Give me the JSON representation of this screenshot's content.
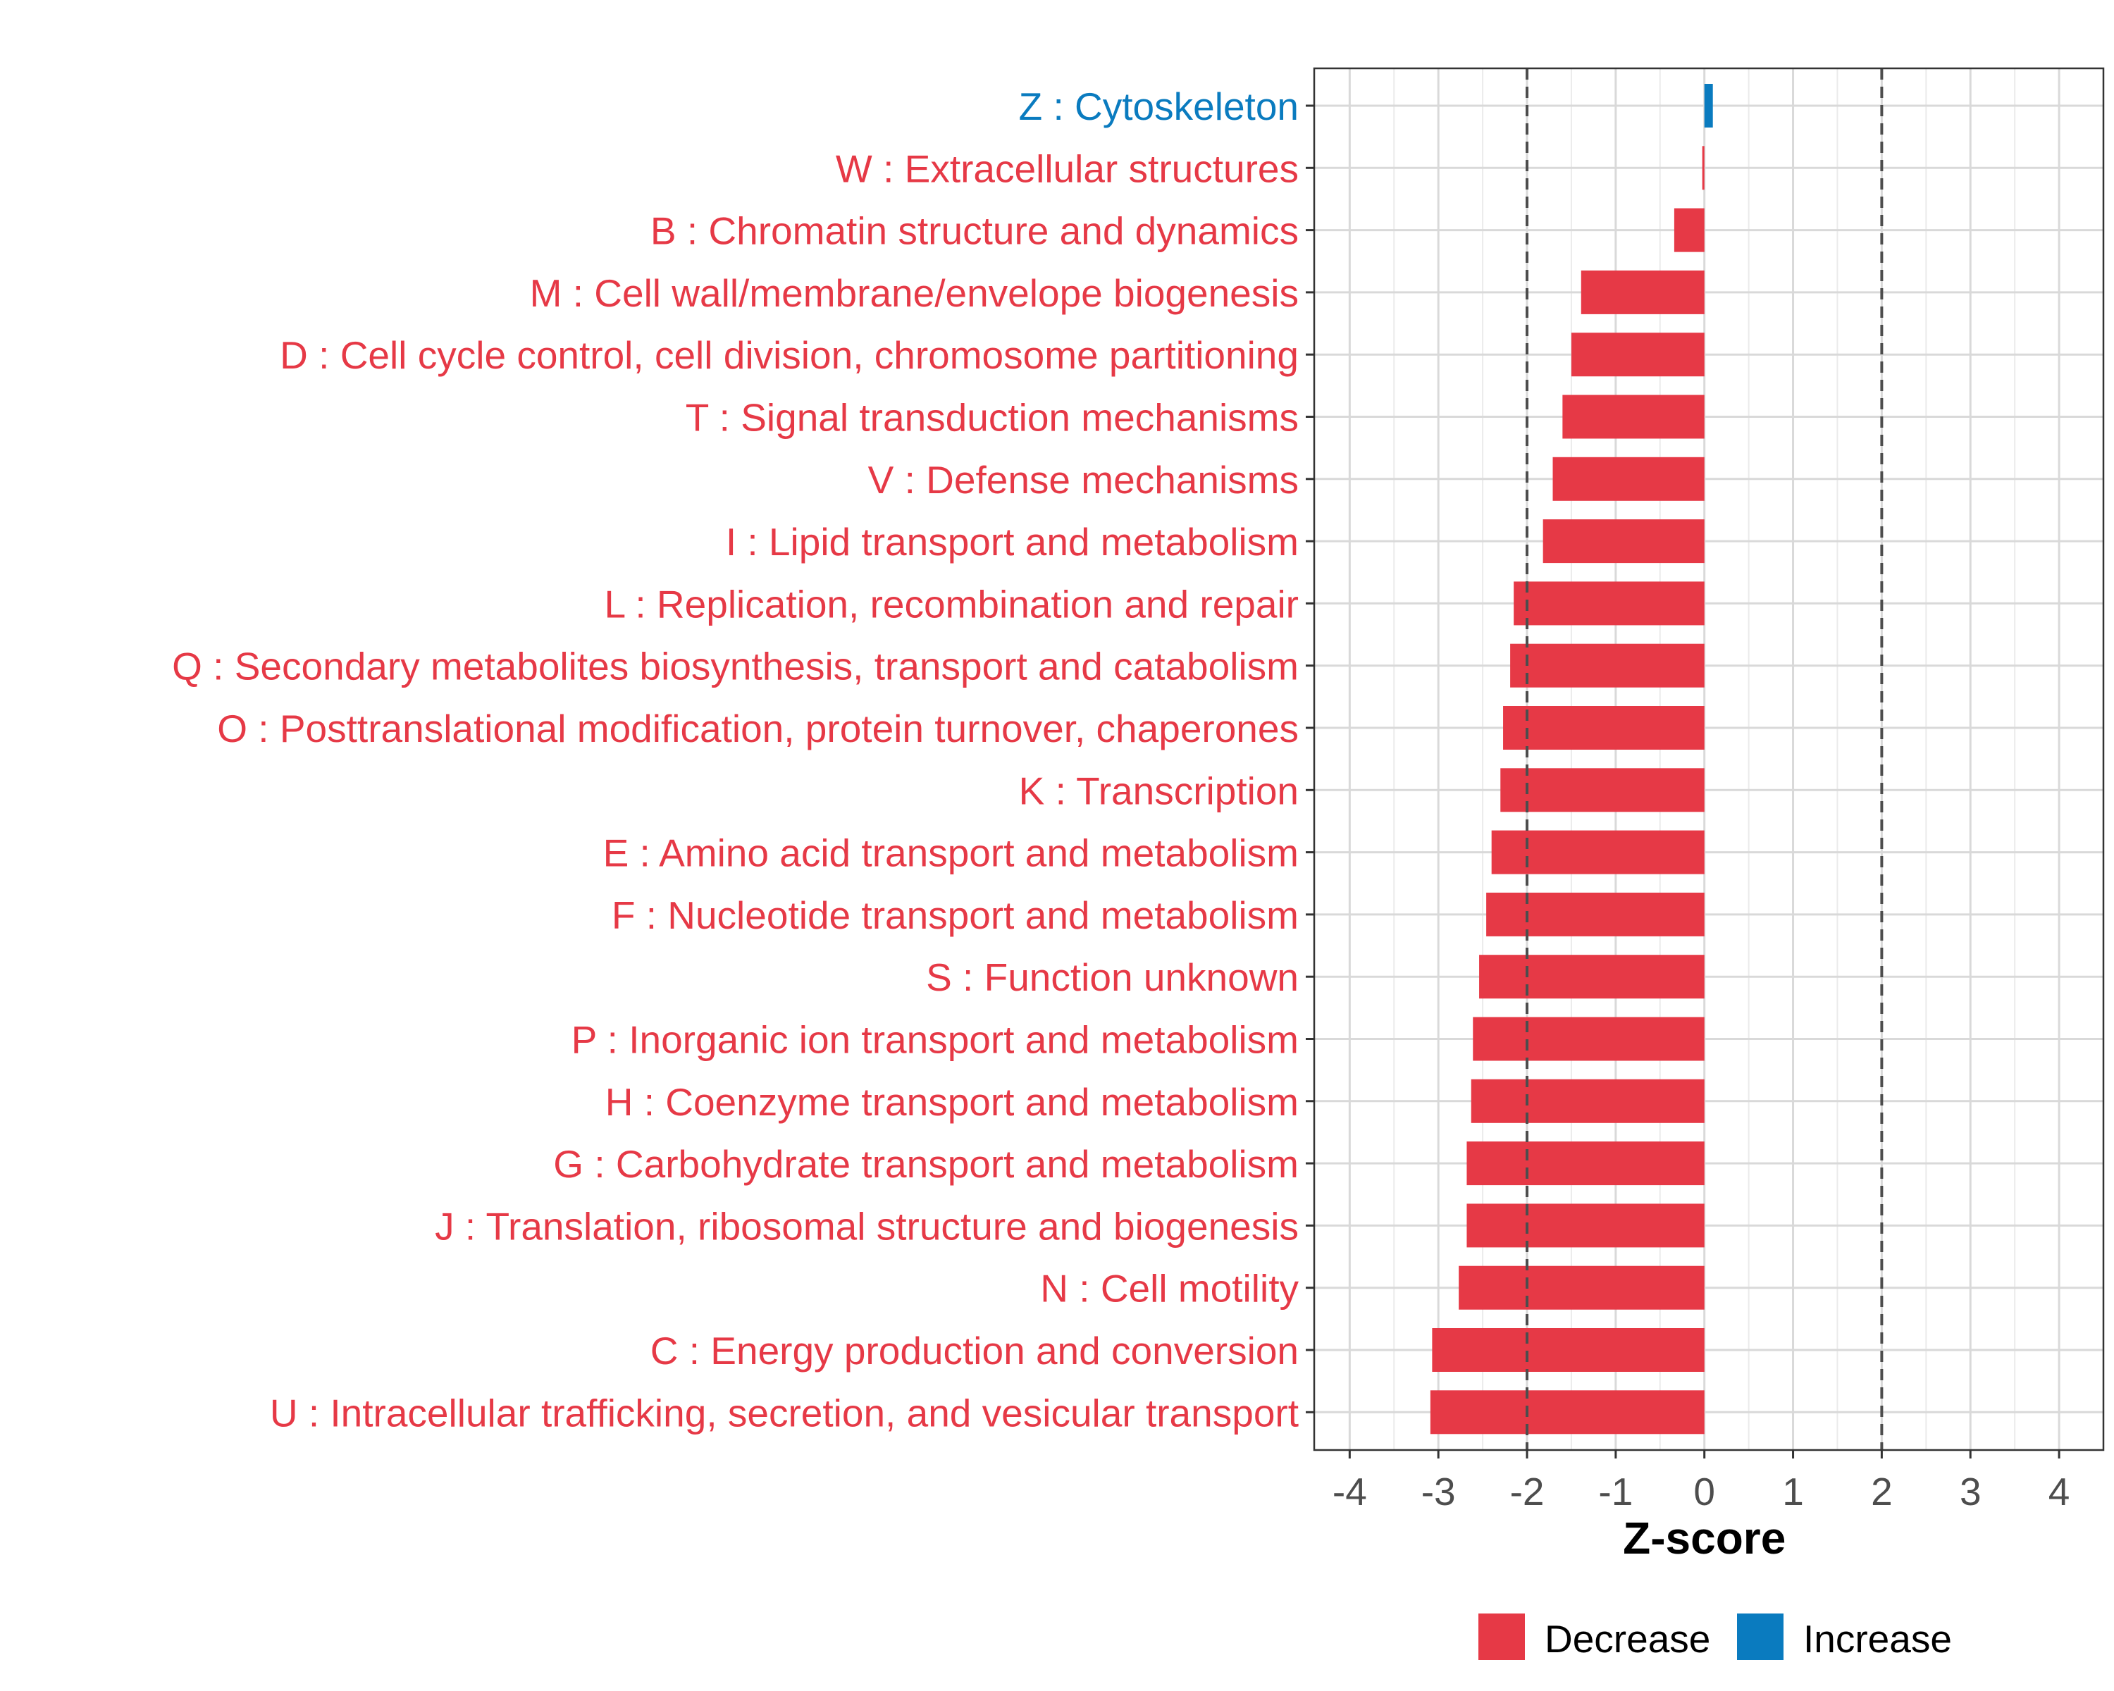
{
  "chart_data": {
    "type": "bar",
    "orientation": "horizontal",
    "xlabel": "Z-score",
    "xlim": [
      -4.4,
      4.5
    ],
    "xticks": [
      -4,
      -3,
      -2,
      -1,
      0,
      1,
      2,
      3,
      4
    ],
    "xtick_labels": [
      "-4",
      "-3",
      "-2",
      "-1",
      "0",
      "1",
      "2",
      "3",
      "4"
    ],
    "reference_lines": [
      -2,
      2
    ],
    "grid": true,
    "legend_position": "bottom",
    "legend": [
      {
        "name": "Decrease",
        "color": "#e63946"
      },
      {
        "name": "Increase",
        "color": "#0a7bbf"
      }
    ],
    "categories": [
      {
        "label": "Z : Cytoskeleton",
        "value": 0.08,
        "direction": "Increase"
      },
      {
        "label": "W : Extracellular structures",
        "value": -0.02,
        "direction": "Decrease"
      },
      {
        "label": "B : Chromatin structure and dynamics",
        "value": -0.34,
        "direction": "Decrease"
      },
      {
        "label": "M : Cell wall/membrane/envelope biogenesis",
        "value": -1.39,
        "direction": "Decrease"
      },
      {
        "label": "D : Cell cycle control, cell division, chromosome partitioning",
        "value": -1.5,
        "direction": "Decrease"
      },
      {
        "label": "T : Signal transduction mechanisms",
        "value": -1.6,
        "direction": "Decrease"
      },
      {
        "label": "V : Defense mechanisms",
        "value": -1.71,
        "direction": "Decrease"
      },
      {
        "label": "I : Lipid transport and metabolism",
        "value": -1.82,
        "direction": "Decrease"
      },
      {
        "label": "L : Replication, recombination and repair",
        "value": -2.15,
        "direction": "Decrease"
      },
      {
        "label": "Q : Secondary metabolites biosynthesis, transport and catabolism",
        "value": -2.19,
        "direction": "Decrease"
      },
      {
        "label": "O : Posttranslational modification, protein turnover, chaperones",
        "value": -2.27,
        "direction": "Decrease"
      },
      {
        "label": "K : Transcription",
        "value": -2.3,
        "direction": "Decrease"
      },
      {
        "label": "E : Amino acid transport and metabolism",
        "value": -2.4,
        "direction": "Decrease"
      },
      {
        "label": "F : Nucleotide transport and metabolism",
        "value": -2.46,
        "direction": "Decrease"
      },
      {
        "label": "S : Function unknown",
        "value": -2.54,
        "direction": "Decrease"
      },
      {
        "label": "P : Inorganic ion transport and metabolism",
        "value": -2.61,
        "direction": "Decrease"
      },
      {
        "label": "H : Coenzyme transport and metabolism",
        "value": -2.63,
        "direction": "Decrease"
      },
      {
        "label": "G : Carbohydrate transport and metabolism",
        "value": -2.68,
        "direction": "Decrease"
      },
      {
        "label": "J : Translation, ribosomal structure and biogenesis",
        "value": -2.68,
        "direction": "Decrease"
      },
      {
        "label": "N : Cell motility",
        "value": -2.77,
        "direction": "Decrease"
      },
      {
        "label": "C : Energy production and conversion",
        "value": -3.07,
        "direction": "Decrease"
      },
      {
        "label": "U : Intracellular trafficking, secretion, and vesicular transport",
        "value": -3.09,
        "direction": "Decrease"
      }
    ]
  }
}
